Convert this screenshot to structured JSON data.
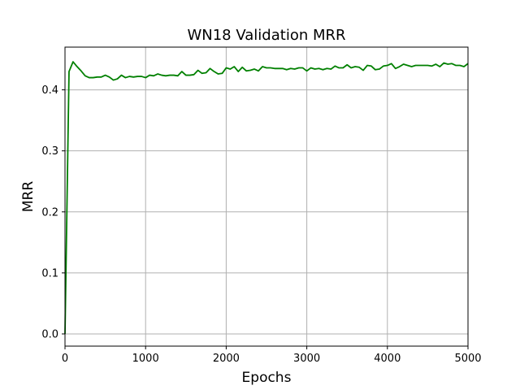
{
  "chart_data": {
    "type": "line",
    "title": "WN18 Validation MRR",
    "xlabel": "Epochs",
    "ylabel": "MRR",
    "xlim": [
      0,
      5000
    ],
    "ylim": [
      -0.02,
      0.47
    ],
    "xticks": [
      0,
      1000,
      2000,
      3000,
      4000,
      5000
    ],
    "xtick_labels": [
      "0",
      "1000",
      "2000",
      "3000",
      "4000",
      "5000"
    ],
    "yticks": [
      0.0,
      0.1,
      0.2,
      0.3,
      0.4
    ],
    "ytick_labels": [
      "0.0",
      "0.1",
      "0.2",
      "0.3",
      "0.4"
    ],
    "grid": true,
    "series": [
      {
        "color": "#008000",
        "x": [
          0,
          50,
          100,
          150,
          200,
          250,
          300,
          350,
          400,
          450,
          500,
          550,
          600,
          650,
          700,
          750,
          800,
          850,
          900,
          950,
          1000,
          1050,
          1100,
          1150,
          1200,
          1250,
          1300,
          1350,
          1400,
          1450,
          1500,
          1550,
          1600,
          1650,
          1700,
          1750,
          1800,
          1850,
          1900,
          1950,
          2000,
          2050,
          2100,
          2150,
          2200,
          2250,
          2300,
          2350,
          2400,
          2450,
          2500,
          2550,
          2600,
          2650,
          2700,
          2750,
          2800,
          2850,
          2900,
          2950,
          3000,
          3050,
          3100,
          3150,
          3200,
          3250,
          3300,
          3350,
          3400,
          3450,
          3500,
          3550,
          3600,
          3650,
          3700,
          3750,
          3800,
          3850,
          3900,
          3950,
          4000,
          4050,
          4100,
          4150,
          4200,
          4250,
          4300,
          4350,
          4400,
          4450,
          4500,
          4550,
          4600,
          4650,
          4700,
          4750,
          4800,
          4850,
          4900,
          4950,
          5000
        ],
        "y": [
          0.0,
          0.43,
          0.446,
          0.438,
          0.431,
          0.423,
          0.42,
          0.42,
          0.421,
          0.421,
          0.424,
          0.421,
          0.416,
          0.418,
          0.424,
          0.42,
          0.422,
          0.421,
          0.422,
          0.422,
          0.42,
          0.424,
          0.423,
          0.426,
          0.424,
          0.423,
          0.424,
          0.424,
          0.423,
          0.43,
          0.424,
          0.424,
          0.425,
          0.432,
          0.427,
          0.428,
          0.435,
          0.43,
          0.426,
          0.427,
          0.436,
          0.434,
          0.438,
          0.43,
          0.437,
          0.431,
          0.432,
          0.434,
          0.431,
          0.438,
          0.436,
          0.436,
          0.435,
          0.435,
          0.435,
          0.433,
          0.435,
          0.434,
          0.436,
          0.436,
          0.431,
          0.436,
          0.434,
          0.435,
          0.433,
          0.435,
          0.434,
          0.439,
          0.436,
          0.436,
          0.441,
          0.436,
          0.438,
          0.437,
          0.432,
          0.44,
          0.439,
          0.433,
          0.434,
          0.439,
          0.44,
          0.443,
          0.435,
          0.438,
          0.442,
          0.44,
          0.438,
          0.44,
          0.44,
          0.44,
          0.44,
          0.439,
          0.442,
          0.438,
          0.444,
          0.442,
          0.443,
          0.44,
          0.44,
          0.438,
          0.443
        ]
      }
    ]
  }
}
